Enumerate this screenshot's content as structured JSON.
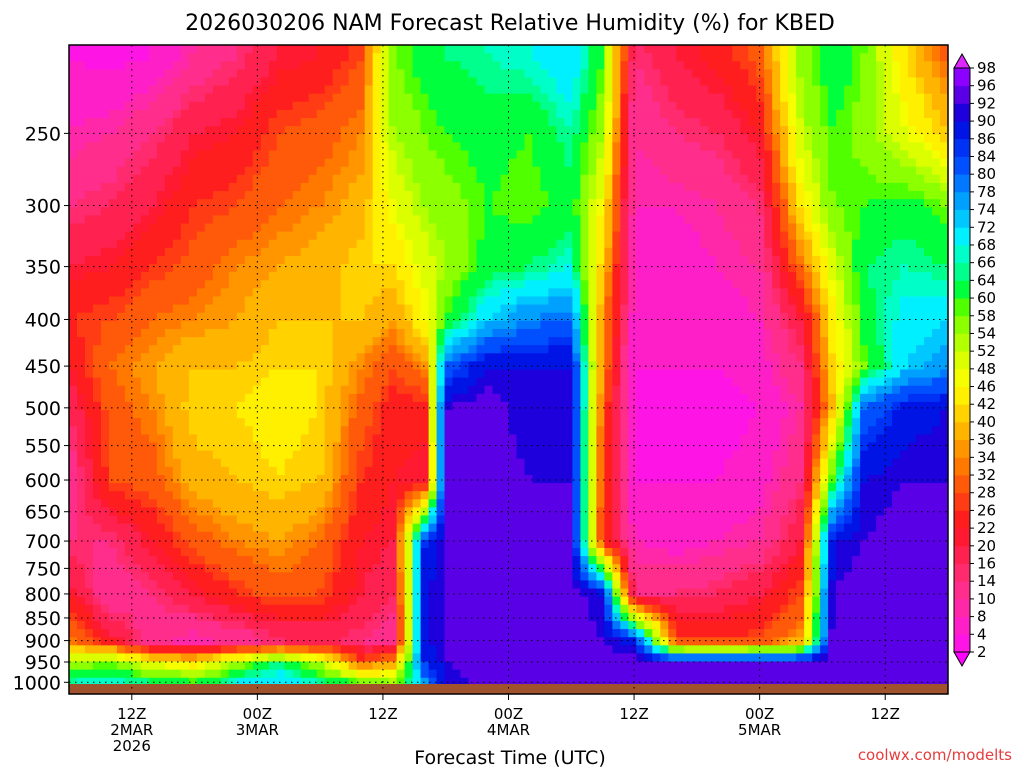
{
  "chart_data": {
    "type": "heatmap",
    "title": "2026030206 NAM Forecast Relative Humidity (%) for KBED",
    "xlabel": "Forecast Time (UTC)",
    "ylabel": "",
    "credit": "coolwx.com/modelts",
    "x_ticks": [
      {
        "hours": 6,
        "line1": "12Z",
        "line2": "2MAR",
        "line3": "2026"
      },
      {
        "hours": 18,
        "line1": "00Z",
        "line2": "3MAR",
        "line3": ""
      },
      {
        "hours": 30,
        "line1": "12Z",
        "line2": "",
        "line3": ""
      },
      {
        "hours": 42,
        "line1": "00Z",
        "line2": "4MAR",
        "line3": ""
      },
      {
        "hours": 54,
        "line1": "12Z",
        "line2": "",
        "line3": ""
      },
      {
        "hours": 66,
        "line1": "00Z",
        "line2": "5MAR",
        "line3": ""
      },
      {
        "hours": 78,
        "line1": "12Z",
        "line2": "",
        "line3": ""
      }
    ],
    "x_range_hours": [
      0,
      84
    ],
    "y_axis": "pressure (hPa), log scale, inverted",
    "y_ticks": [
      250,
      300,
      350,
      400,
      450,
      500,
      550,
      600,
      650,
      700,
      750,
      800,
      850,
      900,
      950,
      1000
    ],
    "y_range": [
      1030,
      200
    ],
    "grid": true,
    "colorbar_levels": [
      2,
      4,
      8,
      10,
      14,
      16,
      20,
      22,
      26,
      28,
      32,
      34,
      36,
      40,
      42,
      46,
      48,
      52,
      54,
      58,
      60,
      64,
      66,
      68,
      72,
      74,
      78,
      80,
      84,
      86,
      90,
      92,
      96,
      98
    ],
    "colorbar_colors": [
      "#ff00ff",
      "#ff14e6",
      "#ff1fc8",
      "#ff28a8",
      "#ff2d8c",
      "#ff2b6e",
      "#ff2250",
      "#ff1a32",
      "#ff1e1e",
      "#ff3c14",
      "#ff5a0a",
      "#ff7800",
      "#ff9600",
      "#ffb400",
      "#ffd200",
      "#fff000",
      "#f5ff00",
      "#dcff00",
      "#b4ff00",
      "#8cff00",
      "#50ff00",
      "#00ff3c",
      "#00ff8c",
      "#00ffc8",
      "#00f0ff",
      "#00c8ff",
      "#00a0ff",
      "#0078ff",
      "#0050ff",
      "#0032f5",
      "#0014e6",
      "#1e00dc",
      "#5a00e6",
      "#8c00ff",
      "#b400ff",
      "#dc28ff"
    ],
    "terrain_color": "#a0522d",
    "rh_samples": [
      {
        "h": 0,
        "rh": [
          4,
          8,
          14,
          20,
          26,
          22,
          16,
          10,
          14,
          22,
          34,
          54,
          66
        ]
      },
      {
        "h": 4,
        "rh": [
          2,
          10,
          16,
          22,
          28,
          32,
          30,
          28,
          14,
          10,
          22,
          58,
          68
        ]
      },
      {
        "h": 8,
        "rh": [
          4,
          14,
          20,
          26,
          32,
          36,
          34,
          30,
          22,
          14,
          10,
          46,
          64
        ]
      },
      {
        "h": 12,
        "rh": [
          10,
          20,
          26,
          30,
          34,
          40,
          42,
          38,
          30,
          20,
          8,
          42,
          60
        ]
      },
      {
        "h": 16,
        "rh": [
          14,
          22,
          28,
          34,
          36,
          40,
          42,
          40,
          34,
          26,
          10,
          54,
          68
        ]
      },
      {
        "h": 20,
        "rh": [
          20,
          28,
          32,
          36,
          40,
          42,
          44,
          42,
          36,
          30,
          14,
          64,
          72
        ]
      },
      {
        "h": 24,
        "rh": [
          22,
          30,
          34,
          38,
          40,
          42,
          42,
          40,
          32,
          28,
          16,
          52,
          66
        ]
      },
      {
        "h": 28,
        "rh": [
          28,
          34,
          38,
          42,
          40,
          34,
          30,
          26,
          22,
          20,
          14,
          28,
          58
        ]
      },
      {
        "h": 31,
        "rh": [
          58,
          54,
          48,
          42,
          36,
          28,
          24,
          22,
          20,
          16,
          10,
          36,
          54
        ]
      },
      {
        "h": 34,
        "rh": [
          62,
          58,
          54,
          50,
          46,
          34,
          24,
          20,
          86,
          90,
          90,
          86,
          76
        ]
      },
      {
        "h": 36,
        "rh": [
          64,
          60,
          56,
          54,
          60,
          80,
          92,
          92,
          92,
          92,
          92,
          92,
          90
        ]
      },
      {
        "h": 40,
        "rh": [
          66,
          62,
          60,
          62,
          72,
          90,
          94,
          94,
          94,
          94,
          94,
          94,
          94
        ]
      },
      {
        "h": 44,
        "rh": [
          68,
          60,
          58,
          64,
          78,
          90,
          90,
          92,
          94,
          94,
          94,
          94,
          94
        ]
      },
      {
        "h": 48,
        "rh": [
          72,
          66,
          62,
          68,
          80,
          90,
          92,
          92,
          94,
          94,
          94,
          94,
          94
        ]
      },
      {
        "h": 51,
        "rh": [
          60,
          54,
          46,
          40,
          36,
          34,
          30,
          28,
          26,
          90,
          92,
          94,
          94
        ]
      },
      {
        "h": 54,
        "rh": [
          14,
          10,
          8,
          8,
          6,
          4,
          4,
          4,
          8,
          14,
          88,
          94,
          94
        ]
      },
      {
        "h": 58,
        "rh": [
          20,
          14,
          8,
          6,
          4,
          4,
          2,
          4,
          6,
          14,
          28,
          92,
          94
        ]
      },
      {
        "h": 62,
        "rh": [
          24,
          16,
          10,
          8,
          6,
          4,
          2,
          4,
          8,
          16,
          26,
          92,
          94
        ]
      },
      {
        "h": 66,
        "rh": [
          30,
          22,
          14,
          10,
          8,
          6,
          4,
          6,
          10,
          20,
          28,
          92,
          94
        ]
      },
      {
        "h": 70,
        "rh": [
          56,
          52,
          44,
          32,
          20,
          14,
          10,
          14,
          20,
          28,
          36,
          92,
          94
        ]
      },
      {
        "h": 73,
        "rh": [
          64,
          60,
          58,
          50,
          44,
          42,
          40,
          60,
          90,
          92,
          94,
          94,
          94
        ]
      },
      {
        "h": 76,
        "rh": [
          58,
          56,
          60,
          64,
          62,
          58,
          80,
          90,
          92,
          94,
          94,
          94,
          94
        ]
      },
      {
        "h": 80,
        "rh": [
          42,
          48,
          62,
          66,
          70,
          72,
          88,
          92,
          94,
          94,
          94,
          94,
          94
        ]
      },
      {
        "h": 84,
        "rh": [
          30,
          40,
          58,
          64,
          72,
          76,
          90,
          92,
          94,
          94,
          94,
          94,
          94
        ]
      }
    ],
    "rh_sample_levels_hpa": [
      205,
      250,
      300,
      350,
      400,
      450,
      500,
      600,
      700,
      800,
      900,
      950,
      1000
    ]
  }
}
